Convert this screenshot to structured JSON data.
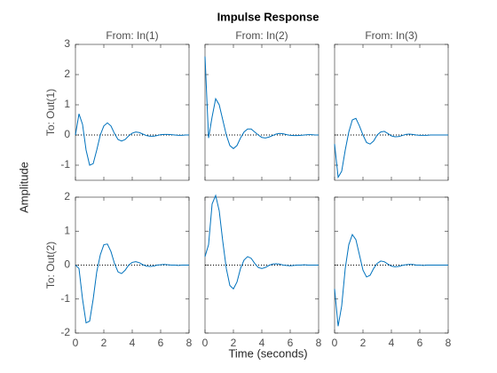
{
  "title": "Impulse Response",
  "ylabel": "Amplitude",
  "xlabel": "Time (seconds)",
  "chart_data": [
    {
      "type": "line",
      "title": "From: In(1)",
      "ylabel": "To: Out(1)",
      "color": "#0072bd",
      "xlim": [
        0,
        8
      ],
      "xticks": [
        0,
        2,
        4,
        6,
        8
      ],
      "ylim": [
        -1.5,
        3
      ],
      "yticks": [
        -1,
        0,
        1,
        2,
        3
      ],
      "x": [
        0,
        0.25,
        0.5,
        0.75,
        1,
        1.25,
        1.5,
        1.75,
        2,
        2.25,
        2.5,
        2.75,
        3,
        3.25,
        3.5,
        3.75,
        4,
        4.25,
        4.5,
        4.75,
        5,
        5.25,
        5.5,
        5.75,
        6,
        6.25,
        6.5,
        6.75,
        7,
        7.25,
        7.5,
        7.75,
        8
      ],
      "values": [
        0,
        0.7,
        0.35,
        -0.5,
        -1.0,
        -0.95,
        -0.5,
        0.0,
        0.3,
        0.4,
        0.3,
        0.05,
        -0.15,
        -0.2,
        -0.15,
        -0.03,
        0.06,
        0.1,
        0.08,
        0.03,
        -0.02,
        -0.04,
        -0.04,
        -0.02,
        0.01,
        0.02,
        0.02,
        0.01,
        0,
        -0.01,
        -0.01,
        0,
        0
      ]
    },
    {
      "type": "line",
      "title": "From: In(2)",
      "color": "#0072bd",
      "xlim": [
        0,
        8
      ],
      "xticks": [
        0,
        2,
        4,
        6,
        8
      ],
      "ylim": [
        -1.5,
        3
      ],
      "yticks": [
        -1,
        0,
        1,
        2,
        3
      ],
      "x": [
        0,
        0.25,
        0.5,
        0.75,
        1,
        1.25,
        1.5,
        1.75,
        2,
        2.25,
        2.5,
        2.75,
        3,
        3.25,
        3.5,
        3.75,
        4,
        4.25,
        4.5,
        4.75,
        5,
        5.25,
        5.5,
        5.75,
        6,
        6.25,
        6.5,
        6.75,
        7,
        7.25,
        7.5,
        7.75,
        8
      ],
      "values": [
        2.6,
        -0.1,
        0.6,
        1.2,
        1.0,
        0.5,
        0.0,
        -0.35,
        -0.45,
        -0.35,
        -0.1,
        0.1,
        0.2,
        0.2,
        0.1,
        0.0,
        -0.08,
        -0.1,
        -0.07,
        -0.02,
        0.03,
        0.05,
        0.04,
        0.01,
        -0.01,
        -0.02,
        -0.02,
        -0.01,
        0,
        0.01,
        0.01,
        0,
        0
      ]
    },
    {
      "type": "line",
      "title": "From: In(3)",
      "color": "#0072bd",
      "xlim": [
        0,
        8
      ],
      "xticks": [
        0,
        2,
        4,
        6,
        8
      ],
      "ylim": [
        -1.5,
        3
      ],
      "yticks": [
        -1,
        0,
        1,
        2,
        3
      ],
      "x": [
        0,
        0.25,
        0.5,
        0.75,
        1,
        1.25,
        1.5,
        1.75,
        2,
        2.25,
        2.5,
        2.75,
        3,
        3.25,
        3.5,
        3.75,
        4,
        4.25,
        4.5,
        4.75,
        5,
        5.25,
        5.5,
        5.75,
        6,
        6.25,
        6.5,
        6.75,
        7,
        7.25,
        7.5,
        7.75,
        8
      ],
      "values": [
        -0.3,
        -1.4,
        -1.2,
        -0.5,
        0.1,
        0.5,
        0.55,
        0.3,
        0.0,
        -0.25,
        -0.3,
        -0.2,
        0.0,
        0.1,
        0.12,
        0.05,
        -0.03,
        -0.06,
        -0.05,
        -0.02,
        0.02,
        0.03,
        0.02,
        0,
        -0.01,
        -0.01,
        -0.01,
        0,
        0,
        0,
        0,
        0,
        0
      ]
    },
    {
      "type": "line",
      "ylabel": "To: Out(2)",
      "color": "#0072bd",
      "xlim": [
        0,
        8
      ],
      "xticks": [
        0,
        2,
        4,
        6,
        8
      ],
      "ylim": [
        -2,
        2
      ],
      "yticks": [
        -2,
        -1,
        0,
        1,
        2
      ],
      "x": [
        0,
        0.25,
        0.5,
        0.75,
        1,
        1.25,
        1.5,
        1.75,
        2,
        2.25,
        2.5,
        2.75,
        3,
        3.25,
        3.5,
        3.75,
        4,
        4.25,
        4.5,
        4.75,
        5,
        5.25,
        5.5,
        5.75,
        6,
        6.25,
        6.5,
        6.75,
        7,
        7.25,
        7.5,
        7.75,
        8
      ],
      "values": [
        0,
        -0.1,
        -1.0,
        -1.7,
        -1.65,
        -1.0,
        -0.2,
        0.3,
        0.6,
        0.62,
        0.4,
        0.05,
        -0.2,
        -0.25,
        -0.15,
        0.0,
        0.08,
        0.1,
        0.07,
        0.01,
        -0.03,
        -0.04,
        -0.03,
        0,
        0.01,
        0.02,
        0.01,
        0,
        0,
        -0.01,
        0,
        0,
        0
      ]
    },
    {
      "type": "line",
      "color": "#0072bd",
      "xlim": [
        0,
        8
      ],
      "xticks": [
        0,
        2,
        4,
        6,
        8
      ],
      "ylim": [
        -2,
        2
      ],
      "yticks": [
        -2,
        -1,
        0,
        1,
        2
      ],
      "x": [
        0,
        0.25,
        0.5,
        0.75,
        1,
        1.25,
        1.5,
        1.75,
        2,
        2.25,
        2.5,
        2.75,
        3,
        3.25,
        3.5,
        3.75,
        4,
        4.25,
        4.5,
        4.75,
        5,
        5.25,
        5.5,
        5.75,
        6,
        6.25,
        6.5,
        6.75,
        7,
        7.25,
        7.5,
        7.75,
        8
      ],
      "values": [
        0.25,
        0.6,
        1.8,
        2.05,
        1.6,
        0.7,
        -0.1,
        -0.6,
        -0.7,
        -0.5,
        -0.1,
        0.15,
        0.25,
        0.2,
        0.05,
        -0.07,
        -0.1,
        -0.07,
        -0.01,
        0.03,
        0.04,
        0.03,
        0,
        -0.01,
        -0.02,
        -0.01,
        0,
        0,
        0.01,
        0,
        0,
        0,
        0
      ]
    },
    {
      "type": "line",
      "color": "#0072bd",
      "xlim": [
        0,
        8
      ],
      "xticks": [
        0,
        2,
        4,
        6,
        8
      ],
      "ylim": [
        -2,
        2
      ],
      "yticks": [
        -2,
        -1,
        0,
        1,
        2
      ],
      "x": [
        0,
        0.25,
        0.5,
        0.75,
        1,
        1.25,
        1.5,
        1.75,
        2,
        2.25,
        2.5,
        2.75,
        3,
        3.25,
        3.5,
        3.75,
        4,
        4.25,
        4.5,
        4.75,
        5,
        5.25,
        5.5,
        5.75,
        6,
        6.25,
        6.5,
        6.75,
        7,
        7.25,
        7.5,
        7.75,
        8
      ],
      "values": [
        -0.7,
        -1.8,
        -1.2,
        -0.1,
        0.6,
        0.9,
        0.75,
        0.3,
        -0.15,
        -0.35,
        -0.3,
        -0.1,
        0.05,
        0.12,
        0.1,
        0.03,
        -0.03,
        -0.05,
        -0.04,
        -0.01,
        0.01,
        0.02,
        0.02,
        0,
        0,
        -0.01,
        0,
        0,
        0,
        0,
        0,
        0,
        0
      ]
    }
  ]
}
